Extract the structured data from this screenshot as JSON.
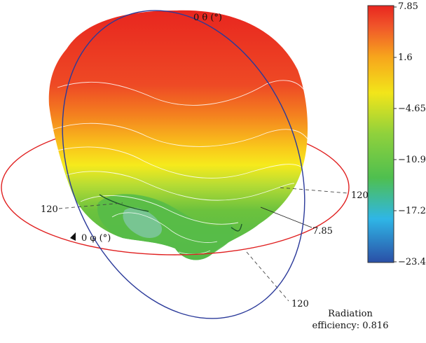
{
  "axes": {
    "theta_label": "0 θ (°)",
    "phi_label": "0 φ (°)",
    "label_left": "120",
    "label_right": "120",
    "label_bottom": "120",
    "label_max": "7.85"
  },
  "colorbar": {
    "ticks": [
      "7.85",
      "1.6",
      "−4.65",
      "−10.9",
      "−17.2",
      "−23.4"
    ],
    "colors": [
      "#2a4fa6",
      "#2fb6e6",
      "#4fbf4f",
      "#8fd13c",
      "#f2e51a",
      "#f7a51c",
      "#f0552a",
      "#e8261f"
    ]
  },
  "efficiency": {
    "line1": "Radiation",
    "line2": "efficiency: 0.816"
  },
  "colors": {
    "equator_ring": "#e02020",
    "meridian_ring": "#2b3a9a",
    "contour": "#ffffff"
  }
}
